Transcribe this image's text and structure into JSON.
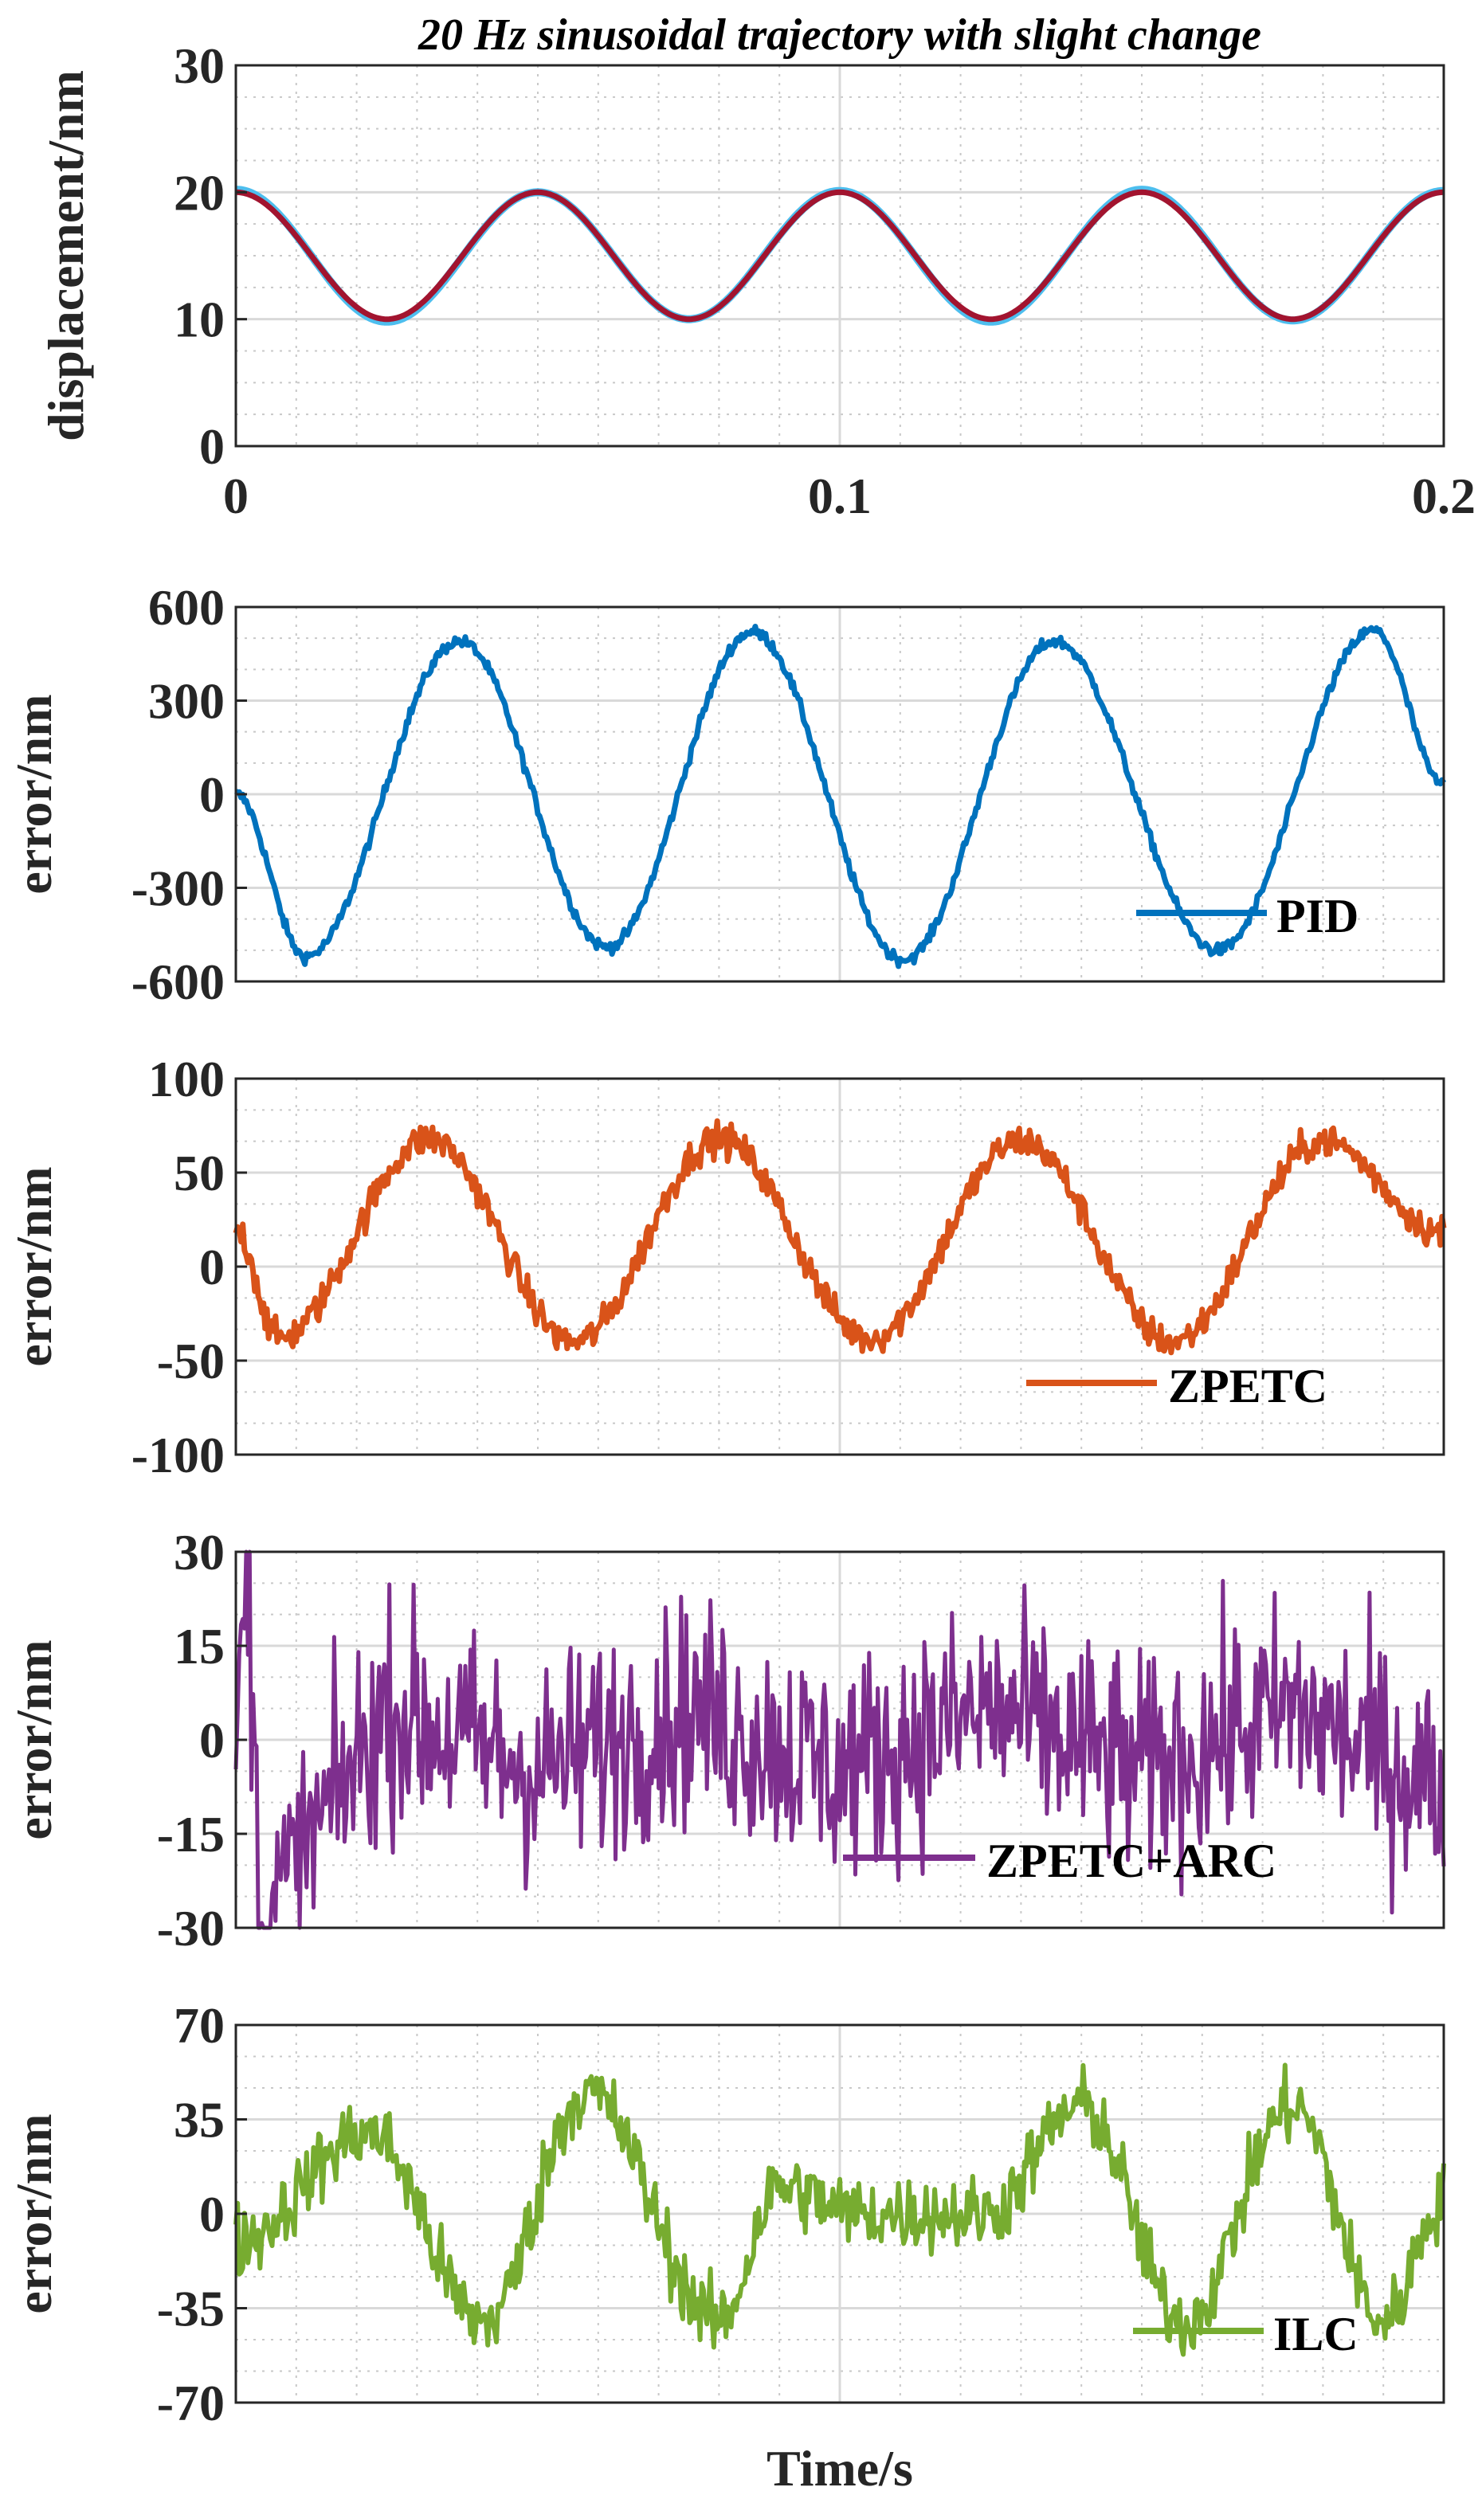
{
  "chart_data": [
    {
      "type": "line",
      "title": "20 Hz sinusoidal trajectory with slight change",
      "xlabel": "",
      "ylabel": "displacement/nm",
      "xlim": [
        0,
        0.2
      ],
      "ylim": [
        0,
        30
      ],
      "xticks": [
        "0",
        "0.1",
        "0.2"
      ],
      "yticks": [
        "0",
        "10",
        "20",
        "30"
      ],
      "grid": "major and minor, dotted",
      "series": [
        {
          "color": "#4DBEEE",
          "x": [
            0,
            0.025,
            0.05,
            0.075,
            0.1,
            0.125,
            0.15,
            0.175,
            0.2
          ],
          "values": [
            20.2,
            9.8,
            20.0,
            10.0,
            20.1,
            9.8,
            20.2,
            9.9,
            20.1
          ]
        },
        {
          "color": "#A2142F",
          "x": [
            0,
            0.025,
            0.05,
            0.075,
            0.1,
            0.125,
            0.15,
            0.175,
            0.2
          ],
          "values": [
            20.0,
            10.0,
            20.0,
            10.0,
            20.0,
            10.0,
            20.0,
            10.0,
            20.0
          ]
        }
      ]
    },
    {
      "type": "line",
      "title": "",
      "xlabel": "",
      "ylabel": "error/nm",
      "xlim": [
        0,
        0.2
      ],
      "ylim": [
        -600,
        600
      ],
      "yticks": [
        "600",
        "300",
        "0",
        "-300",
        "-600"
      ],
      "grid": "major and minor, dotted",
      "legend": {
        "placement": "bottom-right"
      },
      "series": [
        {
          "name": "PID",
          "color": "#0072BD",
          "x": [
            0,
            0.0115,
            0.037,
            0.0615,
            0.0855,
            0.1105,
            0.1355,
            0.1625,
            0.1885,
            0.2
          ],
          "values": [
            0,
            -520,
            490,
            -490,
            520,
            -530,
            490,
            -500,
            525,
            30
          ]
        }
      ]
    },
    {
      "type": "line",
      "title": "",
      "xlabel": "",
      "ylabel": "error/nm",
      "xlim": [
        0,
        0.2
      ],
      "ylim": [
        -100,
        100
      ],
      "yticks": [
        "100",
        "50",
        "0",
        "-50",
        "-100"
      ],
      "grid": "major and minor, dotted",
      "legend": {
        "placement": "bottom-right"
      },
      "series": [
        {
          "name": "ZPETC",
          "color": "#D95319",
          "x": [
            0,
            0.007,
            0.032,
            0.056,
            0.08,
            0.105,
            0.13,
            0.155,
            0.18,
            0.2
          ],
          "values": [
            20,
            -38,
            68,
            -40,
            68,
            -38,
            67,
            -40,
            67,
            18
          ]
        }
      ]
    },
    {
      "type": "line",
      "title": "",
      "xlabel": "",
      "ylabel": "error/nm",
      "xlim": [
        0,
        0.2
      ],
      "ylim": [
        -30,
        30
      ],
      "yticks": [
        "30",
        "15",
        "0",
        "-15",
        "-30"
      ],
      "grid": "major and minor, dotted",
      "legend": {
        "placement": "bottom-right"
      },
      "series": [
        {
          "name": "ZPETC+ARC",
          "color": "#7E2F8E",
          "x": [
            0,
            0.002,
            0.004,
            0.025,
            0.05,
            0.075,
            0.1,
            0.125,
            0.15,
            0.175,
            0.2
          ],
          "values": [
            0,
            28,
            -30,
            5,
            -5,
            5,
            -5,
            5,
            -5,
            5,
            -8
          ]
        }
      ]
    },
    {
      "type": "line",
      "title": "",
      "xlabel": "Time/s",
      "ylabel": "error/nm",
      "xlim": [
        0,
        0.2
      ],
      "ylim": [
        -70,
        70
      ],
      "yticks": [
        "70",
        "35",
        "0",
        "-35",
        "-70"
      ],
      "grid": "major and minor, dotted",
      "legend": {
        "placement": "bottom-right"
      },
      "series": [
        {
          "name": "ILC",
          "color": "#77AC30",
          "x": [
            0,
            0.022,
            0.041,
            0.058,
            0.08,
            0.09,
            0.103,
            0.124,
            0.14,
            0.157,
            0.175,
            0.19,
            0.2
          ],
          "values": [
            -10,
            30,
            -40,
            45,
            -40,
            10,
            0,
            0,
            40,
            -40,
            40,
            -40,
            5
          ]
        }
      ]
    }
  ]
}
